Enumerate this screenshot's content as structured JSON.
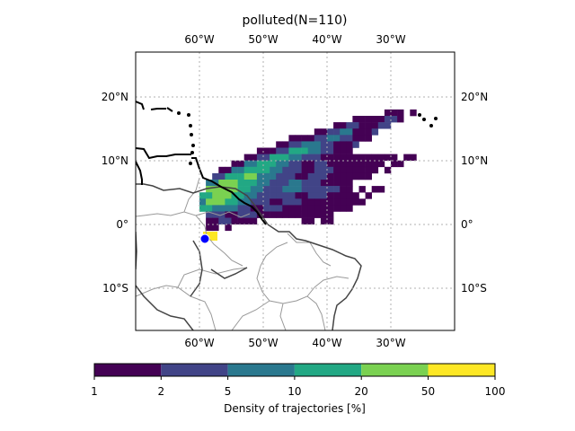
{
  "title": "polluted(N=110)",
  "map": {
    "lon_ticks": [
      "60°W",
      "50°W",
      "40°W",
      "30°W"
    ],
    "lat_ticks": [
      "20°N",
      "10°N",
      "0°",
      "10°S"
    ],
    "gridlines": true,
    "source_marker": {
      "color": "#0000ff"
    }
  },
  "colorbar": {
    "label": "Density of trajectories [%]",
    "ticks": [
      "1",
      "2",
      "5",
      "10",
      "20",
      "50",
      "100"
    ],
    "colors": [
      "#440154",
      "#414487",
      "#2a788e",
      "#22a884",
      "#7ad151",
      "#fde725"
    ]
  },
  "ocean_color": "#ffffff",
  "coast_color": "#000000",
  "border_color": "#999999"
}
